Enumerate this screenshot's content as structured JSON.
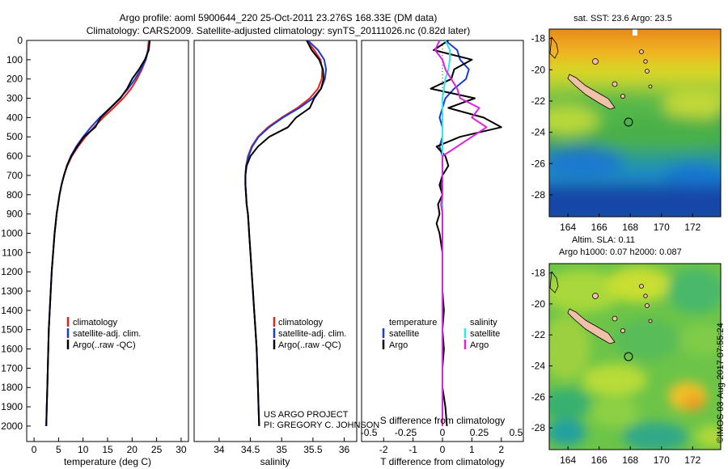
{
  "header": {
    "line1": "Argo profile: aoml 5900644_220 25-Oct-2011 23.276S 168.33E (DM data)",
    "line2": "Climatology: CARS2009. Satellite-adjusted climatology: synTS_20111026.nc (0.82d later)"
  },
  "colors": {
    "climatology": "#e8221b",
    "satellite": "#1a3bd6",
    "argo": "#000000",
    "sat_salinity": "#2ee6ee",
    "argo_salinity": "#e020e0"
  },
  "depth_axis": {
    "ylim": [
      0,
      2080
    ],
    "ticks": [
      0,
      100,
      200,
      300,
      400,
      500,
      600,
      700,
      800,
      900,
      1000,
      1100,
      1200,
      1300,
      1400,
      1500,
      1600,
      1700,
      1800,
      1900,
      2000
    ]
  },
  "chart_data": [
    {
      "type": "line",
      "id": "temperature",
      "xlabel": "temperature (deg C)",
      "ylabel": "",
      "xlim": [
        -1.5,
        31.5
      ],
      "xticks": [
        0,
        5,
        10,
        15,
        20,
        25,
        30
      ],
      "depth": [
        0,
        50,
        100,
        150,
        200,
        250,
        300,
        350,
        400,
        450,
        500,
        550,
        600,
        650,
        700,
        750,
        800,
        850,
        900,
        950,
        1000,
        1100,
        1200,
        1300,
        1400,
        1500,
        1600,
        1700,
        1800,
        1900,
        2000
      ],
      "series": [
        {
          "name": "climatology",
          "values": [
            23.4,
            23.2,
            22.8,
            22.0,
            21.0,
            19.8,
            18.2,
            16.2,
            14.1,
            12.2,
            10.5,
            9.0,
            7.7,
            6.8,
            6.1,
            5.6,
            5.2,
            4.9,
            4.6,
            4.4,
            4.2,
            3.9,
            3.6,
            3.4,
            3.2,
            3.0,
            2.9,
            2.8,
            2.7,
            2.6,
            2.5
          ]
        },
        {
          "name": "satellite-adj. clim.",
          "values": [
            23.6,
            23.3,
            22.8,
            21.8,
            20.6,
            19.2,
            17.5,
            15.5,
            13.4,
            11.6,
            10.0,
            8.6,
            7.5,
            6.7,
            6.1,
            5.6,
            5.2,
            4.9,
            4.6,
            4.4,
            4.2,
            3.9,
            3.6,
            3.4,
            3.2,
            3.0,
            2.9,
            2.8,
            2.7,
            2.6,
            2.5
          ]
        },
        {
          "name": "Argo(..raw -QC)",
          "values": [
            23.6,
            23.4,
            22.6,
            21.4,
            20.0,
            19.0,
            17.6,
            15.6,
            13.6,
            12.5,
            10.2,
            8.8,
            7.6,
            6.7,
            6.1,
            5.6,
            5.2,
            4.9,
            4.6,
            4.4,
            4.2,
            3.9,
            3.6,
            3.4,
            3.2,
            3.0,
            2.9,
            2.8,
            2.7,
            2.6,
            2.5
          ]
        }
      ],
      "legend": [
        "climatology",
        "satellite-adj. clim.",
        "Argo(..raw -QC)"
      ]
    },
    {
      "type": "line",
      "id": "salinity",
      "xlabel": "salinity",
      "ylabel": "",
      "xlim": [
        33.6,
        36.2
      ],
      "xticks": [
        34,
        34.5,
        35,
        35.5,
        36
      ],
      "depth": [
        0,
        50,
        100,
        150,
        200,
        250,
        300,
        350,
        400,
        450,
        500,
        550,
        600,
        650,
        700,
        750,
        800,
        850,
        900,
        950,
        1000,
        1100,
        1200,
        1300,
        1400,
        1500,
        1600,
        1700,
        1800,
        1900,
        2000
      ],
      "series": [
        {
          "name": "climatology",
          "values": [
            35.4,
            35.52,
            35.62,
            35.65,
            35.64,
            35.58,
            35.45,
            35.25,
            35.0,
            34.78,
            34.62,
            34.52,
            34.46,
            34.43,
            34.42,
            34.42,
            34.43,
            34.44,
            34.46,
            34.47,
            34.48,
            34.5,
            34.52,
            34.54,
            34.56,
            34.58,
            34.6,
            34.61,
            34.62,
            34.63,
            34.64
          ]
        },
        {
          "name": "satellite-adj. clim.",
          "values": [
            35.42,
            35.58,
            35.68,
            35.71,
            35.69,
            35.63,
            35.5,
            35.28,
            35.02,
            34.8,
            34.63,
            34.53,
            34.47,
            34.43,
            34.42,
            34.42,
            34.43,
            34.44,
            34.46,
            34.47,
            34.48,
            34.5,
            34.52,
            34.54,
            34.56,
            34.58,
            34.6,
            34.61,
            34.62,
            34.63,
            34.64
          ]
        },
        {
          "name": "Argo(..raw -QC)",
          "values": [
            35.4,
            35.48,
            35.6,
            35.66,
            35.67,
            35.63,
            35.52,
            35.45,
            35.23,
            35.1,
            34.8,
            34.62,
            34.5,
            34.44,
            34.42,
            34.42,
            34.43,
            34.44,
            34.46,
            34.47,
            34.48,
            34.5,
            34.52,
            34.54,
            34.56,
            34.58,
            34.6,
            34.61,
            34.62,
            34.63,
            34.64
          ]
        }
      ],
      "legend": [
        "climatology",
        "satellite-adj. clim.",
        "Argo(..raw -QC)"
      ]
    },
    {
      "type": "line",
      "id": "difference",
      "xlabel": "T difference from climatology",
      "xlabel2": "S difference from climatology",
      "ylabel": "",
      "xlim": [
        -2.75,
        2.75
      ],
      "xticks": [
        -2,
        -1,
        0,
        1,
        2
      ],
      "sticks": [
        -0.5,
        -0.25,
        0,
        0.25,
        0.5
      ],
      "depth": [
        0,
        50,
        100,
        150,
        200,
        250,
        300,
        350,
        400,
        450,
        500,
        550,
        600,
        650,
        700,
        750,
        800,
        850,
        900,
        950,
        1000,
        1100,
        1200,
        1300,
        1400,
        1500,
        1600,
        1700,
        1800,
        1900,
        2000
      ],
      "series": [
        {
          "name": "temperature satellite",
          "values": [
            0.1,
            0.5,
            0.6,
            0.9,
            0.8,
            0.4,
            0.1,
            0.0,
            -0.1,
            0.0,
            0.0,
            -0.1,
            0.0,
            0.0,
            0.0,
            -0.05,
            0.0,
            0.0,
            0.0,
            0.0,
            0.0,
            0.0,
            0.0,
            0.0,
            0.0,
            0.0,
            0.0,
            0.0,
            0.0,
            0.0,
            0.0
          ]
        },
        {
          "name": "temperature Argo",
          "values": [
            0.2,
            -0.3,
            1.0,
            0.4,
            0.3,
            -0.4,
            1.1,
            0.2,
            1.4,
            2.0,
            0.6,
            -0.2,
            0.1,
            0.2,
            0.0,
            -0.1,
            0.0,
            -0.15,
            -0.1,
            -0.2,
            -0.1,
            0.0,
            0.0,
            0.0,
            0.05,
            0.0,
            0.05,
            0.0,
            0.0,
            0.1,
            0.15
          ]
        },
        {
          "name": "salinity satellite",
          "values": [
            0.02,
            0.05,
            0.05,
            0.04,
            0.02,
            0.01,
            0.0,
            0.0,
            0.0,
            0.0,
            0.0,
            0.0,
            0.0,
            0.0,
            0.0,
            0.0,
            0.0,
            0.0,
            0.0,
            0.0,
            0.0,
            0.0,
            0.0,
            0.0,
            0.0,
            0.0,
            0.0,
            0.0,
            0.0,
            0.0,
            0.0
          ]
        },
        {
          "name": "salinity Argo",
          "values": [
            -0.02,
            -0.05,
            0.0,
            0.02,
            0.06,
            0.1,
            0.12,
            0.25,
            0.2,
            0.3,
            0.2,
            0.1,
            0.0,
            0.0,
            0.0,
            0.0,
            0.0,
            -0.01,
            0.0,
            0.0,
            0.0,
            0.0,
            0.0,
            0.0,
            0.0,
            0.0,
            0.0,
            0.0,
            0.0,
            0.0,
            0.0
          ]
        }
      ],
      "legend_t_title": "temperature",
      "legend_s_title": "salinity",
      "legend_items": [
        "satellite",
        "Argo",
        "satellite",
        "Argo"
      ]
    },
    {
      "type": "heatmap",
      "id": "sst_map",
      "title": "sat. SST: 23.6 Argo: 23.5",
      "xticks": [
        164,
        166,
        168,
        170,
        172
      ],
      "yticks": [
        -18,
        -20,
        -22,
        -24,
        -26,
        -28
      ],
      "xlim": [
        162.8,
        173.8
      ],
      "ylim": [
        -29.4,
        -17.4
      ],
      "argo_position": [
        168.33,
        -23.276
      ]
    },
    {
      "type": "heatmap",
      "id": "sla_map",
      "title1": "Altim. SLA: 0.11",
      "title2": "Argo h1000: 0.07 h2000: 0.087",
      "xticks": [
        164,
        166,
        168,
        170,
        172
      ],
      "yticks": [
        -18,
        -20,
        -22,
        -24,
        -26,
        -28
      ],
      "xlim": [
        162.8,
        173.8
      ],
      "ylim": [
        -29.4,
        -17.4
      ],
      "argo_position": [
        168.33,
        -23.276
      ]
    }
  ],
  "credits": {
    "project": "US ARGO PROJECT",
    "pi": "PI: GREGORY C. JOHNSON",
    "imos": "©IMOS 03-Aug-2017 07:55:24"
  }
}
